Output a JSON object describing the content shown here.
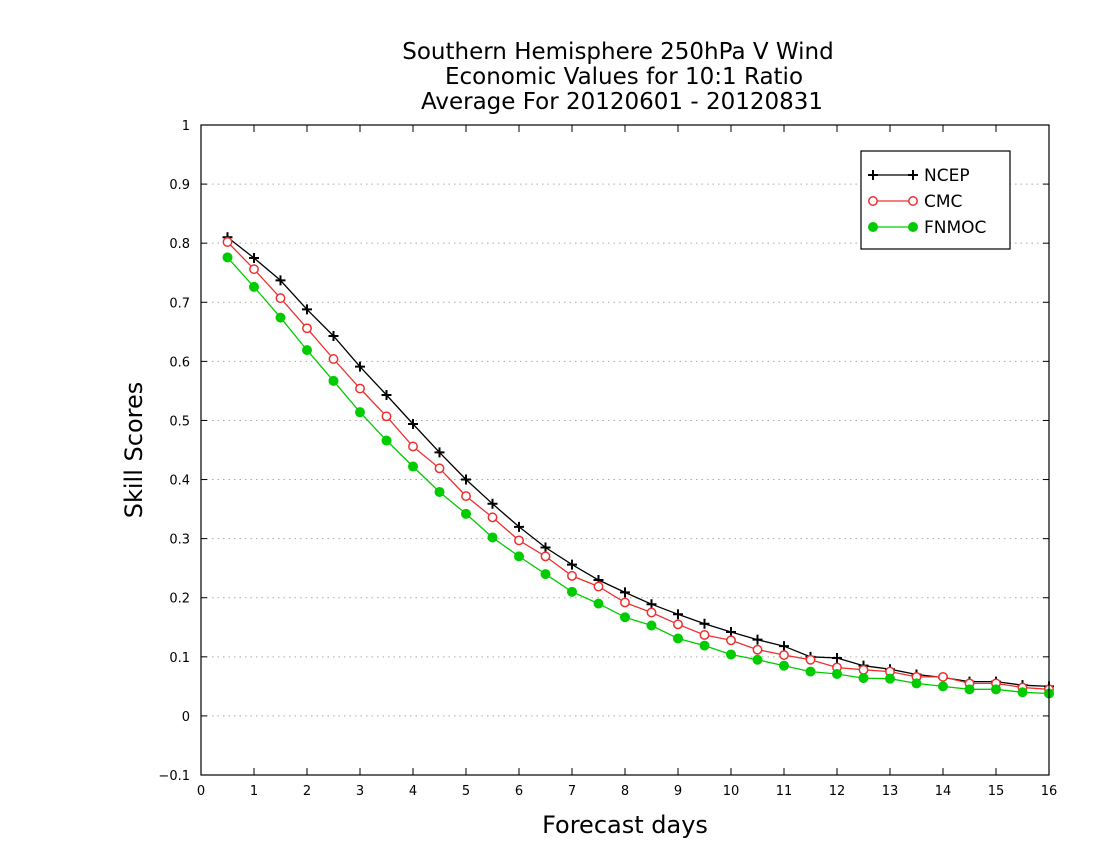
{
  "chart_data": {
    "type": "line",
    "title": [
      "Southern Hemisphere 250hPa V Wind",
      "Economic Values for 10:1 Ratio",
      "Average For 20120601 - 20120831"
    ],
    "xlabel": "Forecast days",
    "ylabel": "Skill Scores",
    "xlim": [
      0,
      16
    ],
    "ylim": [
      -0.1,
      1
    ],
    "xticks": [
      "0",
      "1",
      "2",
      "3",
      "4",
      "5",
      "6",
      "7",
      "8",
      "9",
      "10",
      "11",
      "12",
      "13",
      "14",
      "15",
      "16"
    ],
    "yticks": [
      "−0.1",
      "0",
      "0.1",
      "0.2",
      "0.3",
      "0.4",
      "0.5",
      "0.6",
      "0.7",
      "0.8",
      "0.9",
      "1"
    ],
    "grid": "horizontal dotted",
    "legend_position": "top-right",
    "x": [
      0.5,
      1,
      1.5,
      2,
      2.5,
      3,
      3.5,
      4,
      4.5,
      5,
      5.5,
      6,
      6.5,
      7,
      7.5,
      8,
      8.5,
      9,
      9.5,
      10,
      10.5,
      11,
      11.5,
      12,
      12.5,
      13,
      13.5,
      14,
      14.5,
      15,
      15.5,
      16
    ],
    "series": [
      {
        "name": "NCEP",
        "color": "#000000",
        "marker": "plus",
        "values": [
          0.81,
          0.775,
          0.737,
          0.688,
          0.643,
          0.591,
          0.543,
          0.494,
          0.446,
          0.4,
          0.359,
          0.32,
          0.285,
          0.256,
          0.23,
          0.209,
          0.189,
          0.172,
          0.156,
          0.142,
          0.129,
          0.118,
          0.1,
          0.098,
          0.085,
          0.079,
          0.07,
          0.065,
          0.058,
          0.058,
          0.052,
          0.05
        ]
      },
      {
        "name": "CMC",
        "color": "#ee3030",
        "marker": "open-circle",
        "values": [
          0.802,
          0.756,
          0.707,
          0.656,
          0.604,
          0.554,
          0.507,
          0.456,
          0.419,
          0.372,
          0.336,
          0.297,
          0.27,
          0.237,
          0.219,
          0.192,
          0.175,
          0.155,
          0.137,
          0.128,
          0.112,
          0.103,
          0.095,
          0.082,
          0.078,
          0.075,
          0.066,
          0.066,
          0.055,
          0.055,
          0.048,
          0.045
        ]
      },
      {
        "name": "FNMOC",
        "color": "#00cc00",
        "marker": "filled-circle",
        "values": [
          0.776,
          0.726,
          0.674,
          0.619,
          0.567,
          0.514,
          0.466,
          0.422,
          0.379,
          0.342,
          0.302,
          0.27,
          0.24,
          0.21,
          0.19,
          0.167,
          0.153,
          0.131,
          0.119,
          0.104,
          0.095,
          0.085,
          0.075,
          0.071,
          0.064,
          0.063,
          0.055,
          0.05,
          0.045,
          0.045,
          0.04,
          0.038
        ]
      }
    ]
  }
}
